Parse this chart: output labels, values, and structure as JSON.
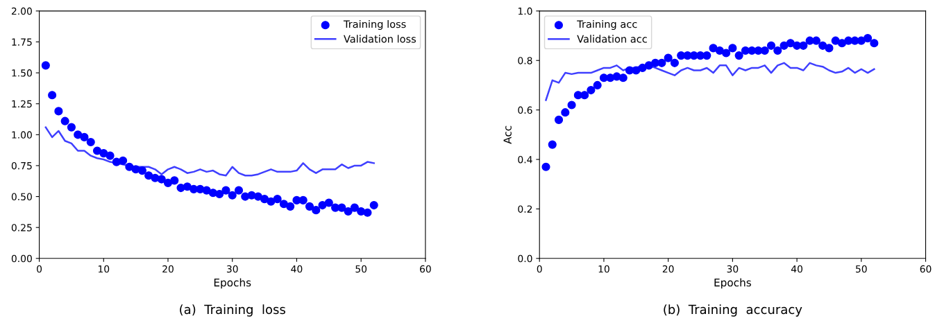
{
  "chart_data": [
    {
      "type": "scatter",
      "xlabel": "Epochs",
      "xlim": [
        0,
        60
      ],
      "xticks": [
        0,
        10,
        20,
        30,
        40,
        50,
        60
      ],
      "ylim": [
        0,
        2.0
      ],
      "yticks": [
        {
          "value": 0,
          "label": "0.00"
        },
        {
          "value": 0.25,
          "label": "0.25"
        },
        {
          "value": 0.5,
          "label": "0.50"
        },
        {
          "value": 0.75,
          "label": "0.75"
        },
        {
          "value": 1.0,
          "label": "1.00"
        },
        {
          "value": 1.25,
          "label": "1.25"
        },
        {
          "value": 1.5,
          "label": "1.50"
        },
        {
          "value": 1.75,
          "label": "1.75"
        },
        {
          "value": 2.0,
          "label": "2.00"
        }
      ],
      "grid": false,
      "legend": "top right",
      "annotations": [
        "(a)  Training  loss"
      ],
      "x": [
        1,
        2,
        3,
        4,
        5,
        6,
        7,
        8,
        9,
        10,
        11,
        12,
        13,
        14,
        15,
        16,
        17,
        18,
        19,
        20,
        21,
        22,
        23,
        24,
        25,
        26,
        27,
        28,
        29,
        30,
        31,
        32,
        33,
        34,
        35,
        36,
        37,
        38,
        39,
        40,
        41,
        42,
        43,
        44,
        45,
        46,
        47,
        48,
        49,
        50,
        51,
        52
      ],
      "series": [
        {
          "name": "Training loss",
          "marker": "circle",
          "color": "#0000ff",
          "values": [
            1.56,
            1.32,
            1.19,
            1.11,
            1.06,
            1.0,
            0.98,
            0.94,
            0.87,
            0.85,
            0.83,
            0.78,
            0.79,
            0.74,
            0.72,
            0.71,
            0.67,
            0.65,
            0.64,
            0.61,
            0.63,
            0.57,
            0.58,
            0.56,
            0.56,
            0.55,
            0.53,
            0.52,
            0.55,
            0.51,
            0.55,
            0.5,
            0.51,
            0.5,
            0.48,
            0.46,
            0.48,
            0.44,
            0.42,
            0.47,
            0.47,
            0.42,
            0.39,
            0.43,
            0.45,
            0.41,
            0.41,
            0.38,
            0.41,
            0.38,
            0.37,
            0.43
          ]
        },
        {
          "name": "Validation loss",
          "type": "line",
          "line_style": "solid",
          "color": "#3f3fff",
          "values": [
            1.06,
            0.98,
            1.03,
            0.95,
            0.93,
            0.87,
            0.87,
            0.83,
            0.81,
            0.8,
            0.78,
            0.77,
            0.76,
            0.75,
            0.74,
            0.74,
            0.74,
            0.72,
            0.68,
            0.72,
            0.74,
            0.72,
            0.69,
            0.7,
            0.72,
            0.7,
            0.71,
            0.68,
            0.67,
            0.74,
            0.69,
            0.67,
            0.67,
            0.68,
            0.7,
            0.72,
            0.7,
            0.7,
            0.7,
            0.71,
            0.77,
            0.72,
            0.69,
            0.72,
            0.72,
            0.72,
            0.76,
            0.73,
            0.75,
            0.75,
            0.78,
            0.77
          ]
        }
      ]
    },
    {
      "type": "scatter",
      "xlabel": "Epochs",
      "ylabel": "Acc",
      "xlim": [
        0,
        60
      ],
      "xticks": [
        0,
        10,
        20,
        30,
        40,
        50,
        60
      ],
      "ylim": [
        0,
        1.0
      ],
      "yticks": [
        {
          "value": 0,
          "label": "0.0"
        },
        {
          "value": 0.2,
          "label": "0.2"
        },
        {
          "value": 0.4,
          "label": "0.4"
        },
        {
          "value": 0.6,
          "label": "0.6"
        },
        {
          "value": 0.8,
          "label": "0.8"
        },
        {
          "value": 1.0,
          "label": "1.0"
        }
      ],
      "grid": false,
      "legend": "top left",
      "annotations": [
        "(b)  Training  accuracy"
      ],
      "x": [
        1,
        2,
        3,
        4,
        5,
        6,
        7,
        8,
        9,
        10,
        11,
        12,
        13,
        14,
        15,
        16,
        17,
        18,
        19,
        20,
        21,
        22,
        23,
        24,
        25,
        26,
        27,
        28,
        29,
        30,
        31,
        32,
        33,
        34,
        35,
        36,
        37,
        38,
        39,
        40,
        41,
        42,
        43,
        44,
        45,
        46,
        47,
        48,
        49,
        50,
        51,
        52
      ],
      "series": [
        {
          "name": "Training acc",
          "marker": "circle",
          "color": "#0000ff",
          "values": [
            0.37,
            0.46,
            0.56,
            0.59,
            0.62,
            0.66,
            0.66,
            0.68,
            0.7,
            0.73,
            0.73,
            0.735,
            0.73,
            0.76,
            0.76,
            0.77,
            0.78,
            0.79,
            0.79,
            0.81,
            0.79,
            0.82,
            0.82,
            0.82,
            0.82,
            0.82,
            0.85,
            0.84,
            0.83,
            0.85,
            0.82,
            0.84,
            0.84,
            0.84,
            0.84,
            0.86,
            0.84,
            0.86,
            0.87,
            0.86,
            0.86,
            0.88,
            0.88,
            0.86,
            0.85,
            0.88,
            0.87,
            0.88,
            0.88,
            0.88,
            0.89,
            0.87
          ]
        },
        {
          "name": "Validation acc",
          "type": "line",
          "line_style": "solid",
          "color": "#3f3fff",
          "values": [
            0.64,
            0.72,
            0.71,
            0.75,
            0.745,
            0.75,
            0.75,
            0.75,
            0.76,
            0.77,
            0.77,
            0.78,
            0.76,
            0.77,
            0.77,
            0.78,
            0.78,
            0.77,
            0.76,
            0.75,
            0.74,
            0.76,
            0.77,
            0.76,
            0.76,
            0.77,
            0.75,
            0.78,
            0.78,
            0.74,
            0.77,
            0.76,
            0.77,
            0.77,
            0.78,
            0.75,
            0.78,
            0.79,
            0.77,
            0.77,
            0.76,
            0.79,
            0.78,
            0.775,
            0.76,
            0.75,
            0.755,
            0.77,
            0.75,
            0.765,
            0.75,
            0.765
          ]
        }
      ]
    }
  ]
}
